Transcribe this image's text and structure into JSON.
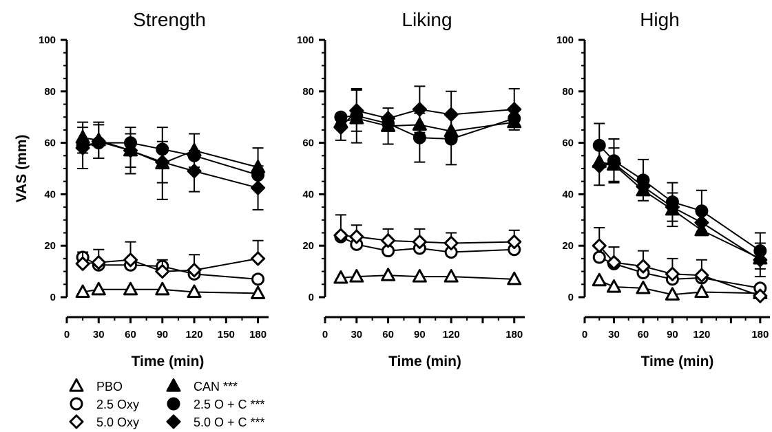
{
  "figure": {
    "y_axis_label": "VAS (mm)",
    "legend": [
      {
        "marker": "triangle",
        "filled": false,
        "label": "PBO"
      },
      {
        "marker": "circle",
        "filled": false,
        "label": "2.5 Oxy"
      },
      {
        "marker": "diamond",
        "filled": false,
        "label": "5.0 Oxy"
      },
      {
        "marker": "triangle",
        "filled": true,
        "label": "CAN ***"
      },
      {
        "marker": "circle",
        "filled": true,
        "label": "2.5 O + C ***"
      },
      {
        "marker": "diamond",
        "filled": true,
        "label": "5.0 O + C ***"
      }
    ]
  },
  "chart_data": [
    {
      "type": "line",
      "title": "Strength",
      "xlabel": "Time (min)",
      "ylabel": "VAS (mm)",
      "xlim": [
        0,
        190
      ],
      "ylim": [
        0,
        100
      ],
      "xticks": [
        0,
        30,
        60,
        90,
        120,
        150,
        180
      ],
      "yticks": [
        0,
        20,
        40,
        60,
        80,
        100
      ],
      "x": [
        15,
        30,
        60,
        90,
        120,
        180
      ],
      "series": [
        {
          "name": "PBO",
          "marker": "triangle",
          "filled": false,
          "values": [
            2,
            3,
            3,
            3,
            2,
            1.5
          ],
          "err": [
            null,
            null,
            null,
            null,
            null,
            null
          ]
        },
        {
          "name": "2.5 Oxy",
          "marker": "circle",
          "filled": false,
          "values": [
            15.5,
            12.5,
            12.5,
            12,
            9,
            7
          ],
          "err": [
            null,
            null,
            null,
            null,
            null,
            null
          ]
        },
        {
          "name": "5.0 Oxy",
          "marker": "diamond",
          "filled": false,
          "values": [
            13,
            13.5,
            14.5,
            10,
            10.5,
            15
          ],
          "err": [
            4.5,
            5,
            7,
            4.5,
            6,
            7
          ]
        },
        {
          "name": "CAN ***",
          "marker": "triangle",
          "filled": true,
          "values": [
            62,
            61,
            57,
            52,
            57,
            50.5
          ],
          "err": [
            6,
            7,
            9,
            14,
            6.5,
            7.5
          ]
        },
        {
          "name": "2.5 O + C ***",
          "marker": "circle",
          "filled": true,
          "values": [
            59,
            60,
            60,
            57.5,
            55,
            47.5
          ],
          "err": [
            null,
            null,
            null,
            null,
            null,
            null
          ]
        },
        {
          "name": "5.0 O + C ***",
          "marker": "diamond",
          "filled": true,
          "values": [
            58,
            60.5,
            57,
            52.5,
            49,
            42.5
          ],
          "err": [
            8,
            6.5,
            6.5,
            8,
            8,
            8.5
          ]
        }
      ]
    },
    {
      "type": "line",
      "title": "Liking",
      "xlabel": "Time (min)",
      "ylabel": "",
      "xlim": [
        0,
        190
      ],
      "ylim": [
        0,
        100
      ],
      "xticks": [
        0,
        30,
        60,
        90,
        120,
        180
      ],
      "yticks": [
        0,
        20,
        40,
        60,
        80,
        100
      ],
      "x": [
        15,
        30,
        60,
        90,
        120,
        180
      ],
      "series": [
        {
          "name": "PBO",
          "marker": "triangle",
          "filled": false,
          "values": [
            7.5,
            8,
            8.5,
            8,
            8,
            7
          ],
          "err": [
            null,
            null,
            null,
            null,
            null,
            null
          ]
        },
        {
          "name": "2.5 Oxy",
          "marker": "circle",
          "filled": false,
          "values": [
            23.5,
            20.5,
            18,
            19,
            17.5,
            18.5
          ],
          "err": [
            null,
            null,
            null,
            null,
            null,
            null
          ]
        },
        {
          "name": "5.0 Oxy",
          "marker": "diamond",
          "filled": false,
          "values": [
            24,
            23.5,
            22,
            21.5,
            21,
            21.5
          ],
          "err": [
            8,
            4.5,
            4.5,
            5,
            4,
            4.5
          ]
        },
        {
          "name": "CAN ***",
          "marker": "triangle",
          "filled": true,
          "values": [
            68,
            69.5,
            66.5,
            67,
            64.5,
            68
          ],
          "err": [
            null,
            null,
            7,
            null,
            null,
            null
          ]
        },
        {
          "name": "2.5 O + C ***",
          "marker": "circle",
          "filled": true,
          "values": [
            70,
            70.5,
            67.5,
            62,
            61.5,
            69.5
          ],
          "err": [
            null,
            10.5,
            null,
            9.5,
            10,
            null
          ]
        },
        {
          "name": "5.0 O + C ***",
          "marker": "diamond",
          "filled": true,
          "values": [
            66,
            72.5,
            69.5,
            73,
            71,
            73
          ],
          "err": [
            5,
            8,
            null,
            9,
            9,
            8
          ]
        }
      ]
    },
    {
      "type": "line",
      "title": "High",
      "xlabel": "Time (min)",
      "ylabel": "",
      "xlim": [
        0,
        190
      ],
      "ylim": [
        0,
        100
      ],
      "xticks": [
        0,
        30,
        60,
        90,
        120,
        180
      ],
      "yticks": [
        0,
        20,
        40,
        60,
        80,
        100
      ],
      "x": [
        15,
        30,
        60,
        90,
        120,
        180
      ],
      "series": [
        {
          "name": "PBO",
          "marker": "triangle",
          "filled": false,
          "values": [
            6.5,
            4,
            3.5,
            1,
            2,
            1.5
          ],
          "err": [
            null,
            null,
            null,
            null,
            null,
            null
          ]
        },
        {
          "name": "2.5 Oxy",
          "marker": "circle",
          "filled": false,
          "values": [
            15.5,
            13,
            9.5,
            7,
            7.5,
            3.5
          ],
          "err": [
            null,
            null,
            null,
            null,
            null,
            null
          ]
        },
        {
          "name": "5.0 Oxy",
          "marker": "diamond",
          "filled": false,
          "values": [
            20,
            13.5,
            12,
            9,
            8.5,
            0.5
          ],
          "err": [
            7,
            6,
            6,
            6,
            6,
            null
          ]
        },
        {
          "name": "CAN ***",
          "marker": "triangle",
          "filled": true,
          "values": [
            52.5,
            51.5,
            41.5,
            34,
            26,
            15
          ],
          "err": [
            null,
            6.5,
            null,
            6.5,
            null,
            null
          ]
        },
        {
          "name": "2.5 O + C ***",
          "marker": "circle",
          "filled": true,
          "values": [
            59,
            53,
            45.5,
            37,
            33.5,
            18
          ],
          "err": [
            8.5,
            8.5,
            8,
            7.5,
            8,
            7
          ]
        },
        {
          "name": "5.0 O + C ***",
          "marker": "diamond",
          "filled": true,
          "values": [
            51,
            52,
            43,
            35,
            29,
            14.5
          ],
          "err": [
            7.5,
            null,
            null,
            null,
            null,
            6.5
          ]
        }
      ]
    }
  ]
}
